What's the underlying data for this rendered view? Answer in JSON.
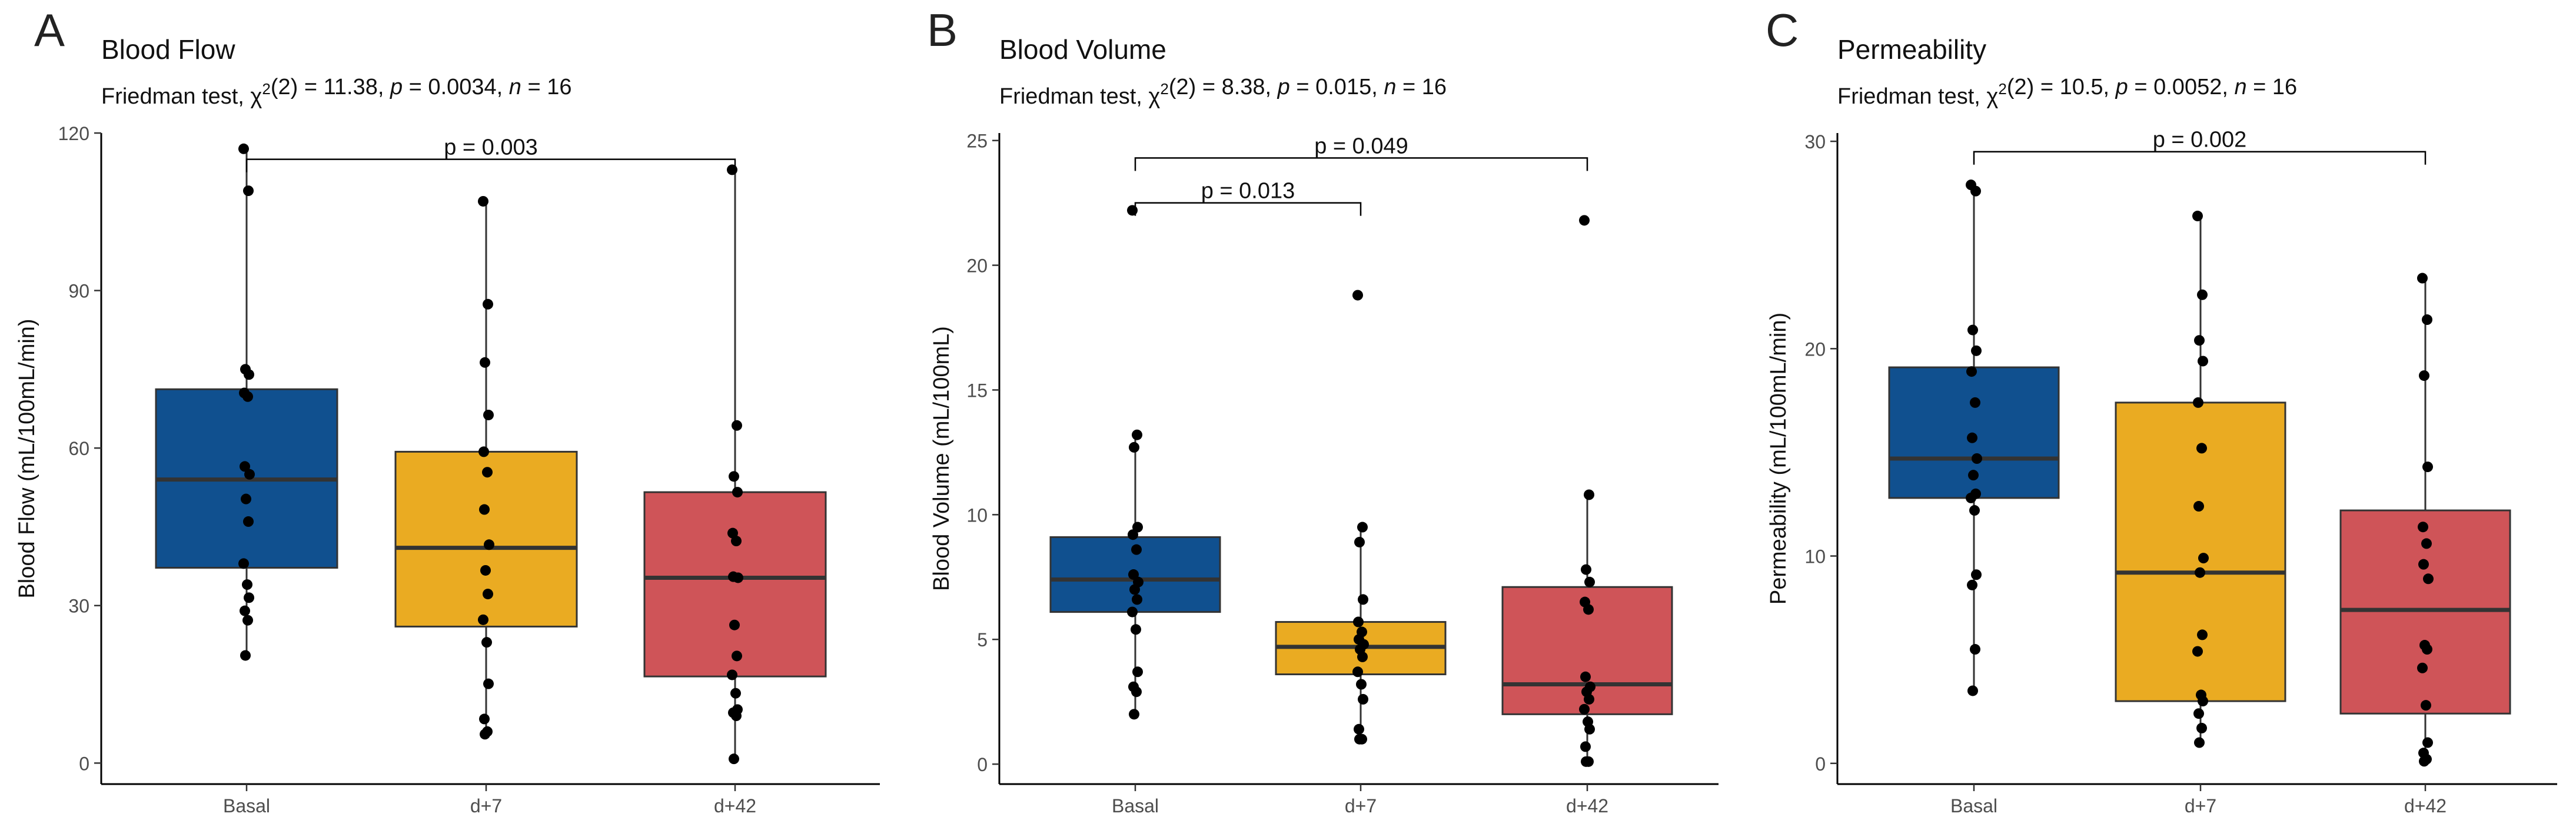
{
  "figure": {
    "type": "box",
    "groups": [
      "Basal",
      "d+7",
      "d+42"
    ]
  },
  "colors": {
    "Basal": "#10508f",
    "d+7": "#eaab22",
    "d+42": "#cf5458",
    "points": "#000000",
    "axis": "#000000",
    "box_edge": "#333333"
  },
  "chart_data": [
    {
      "type": "box",
      "panel_label": "A",
      "title": "Blood Flow",
      "stats": {
        "test": "Friedman test",
        "chi2_df": "2",
        "chi2": "11.38",
        "p": "0.0034",
        "n": "16"
      },
      "ylabel": "Blood Flow (mL/100mL/min)",
      "ylim": [
        -4,
        120
      ],
      "yticks": [
        0,
        30,
        60,
        90,
        120
      ],
      "categories": [
        "Basal",
        "d+7",
        "d+42"
      ],
      "boxes": [
        {
          "q1": 37.2,
          "median": 54.0,
          "q3": 71.2,
          "whisker_low": 20.5,
          "whisker_high": 117.0
        },
        {
          "q1": 26.0,
          "median": 41.0,
          "q3": 59.3,
          "whisker_low": 5.5,
          "whisker_high": 107.0
        },
        {
          "q1": 16.5,
          "median": 35.3,
          "q3": 51.6,
          "whisker_low": 0.8,
          "whisker_high": 113.0
        }
      ],
      "points": [
        [
          117.0,
          109.0,
          75.0,
          74.0,
          70.5,
          69.8,
          56.5,
          55.0,
          50.3,
          46.0,
          38.0,
          34.0,
          31.5,
          29.0,
          27.2,
          20.5
        ],
        [
          107.0,
          87.4,
          76.3,
          66.3,
          59.3,
          55.4,
          48.3,
          41.6,
          36.7,
          32.2,
          27.3,
          23.0,
          15.1,
          8.4,
          6.0,
          5.5
        ],
        [
          113.0,
          64.3,
          54.6,
          51.6,
          43.8,
          42.3,
          35.5,
          35.3,
          26.3,
          20.4,
          16.8,
          13.3,
          10.2,
          9.6,
          9.0,
          0.8
        ]
      ],
      "comparisons": [
        {
          "from": "Basal",
          "to": "d+42",
          "label": "p = 0.003",
          "y": 115.0
        }
      ]
    },
    {
      "type": "box",
      "panel_label": "B",
      "title": "Blood Volume",
      "stats": {
        "test": "Friedman test",
        "chi2_df": "2",
        "chi2": "8.38",
        "p": "0.015",
        "n": "16"
      },
      "ylabel": "Blood Volume (mL/100mL)",
      "ylim": [
        -0.8,
        25.3
      ],
      "yticks": [
        0,
        5,
        10,
        15,
        20,
        25
      ],
      "categories": [
        "Basal",
        "d+7",
        "d+42"
      ],
      "boxes": [
        {
          "q1": 6.1,
          "median": 7.4,
          "q3": 9.1,
          "whisker_low": 2.0,
          "whisker_high": 13.2
        },
        {
          "q1": 3.6,
          "median": 4.7,
          "q3": 5.7,
          "whisker_low": 1.0,
          "whisker_high": 9.5
        },
        {
          "q1": 2.0,
          "median": 3.2,
          "q3": 7.1,
          "whisker_low": 0.1,
          "whisker_high": 10.8
        }
      ],
      "points": [
        [
          22.2,
          13.2,
          12.7,
          9.5,
          9.2,
          8.6,
          7.6,
          7.3,
          7.0,
          6.6,
          6.1,
          5.4,
          3.7,
          3.1,
          2.9,
          2.0
        ],
        [
          18.8,
          9.5,
          8.9,
          6.6,
          5.7,
          5.3,
          5.0,
          4.8,
          4.6,
          4.3,
          3.7,
          3.2,
          2.6,
          1.4,
          1.0,
          1.0
        ],
        [
          21.8,
          10.8,
          7.8,
          7.3,
          6.5,
          6.2,
          3.5,
          3.1,
          2.9,
          2.6,
          2.2,
          1.7,
          1.4,
          0.7,
          0.1,
          0.1
        ]
      ],
      "comparisons": [
        {
          "from": "Basal",
          "to": "d+7",
          "label": "p = 0.013",
          "y": 22.5
        },
        {
          "from": "Basal",
          "to": "d+42",
          "label": "p = 0.049",
          "y": 24.3
        }
      ]
    },
    {
      "type": "box",
      "panel_label": "C",
      "title": "Permeability",
      "stats": {
        "test": "Friedman test",
        "chi2_df": "2",
        "chi2": "10.5",
        "p": "0.0052",
        "n": "16"
      },
      "ylabel": "Permeability (mL/100mL/min)",
      "ylim": [
        -1.0,
        30.4
      ],
      "yticks": [
        0,
        10,
        20,
        30
      ],
      "categories": [
        "Basal",
        "d+7",
        "d+42"
      ],
      "boxes": [
        {
          "q1": 12.8,
          "median": 14.7,
          "q3": 19.1,
          "whisker_low": 3.5,
          "whisker_high": 27.9
        },
        {
          "q1": 3.0,
          "median": 9.2,
          "q3": 17.4,
          "whisker_low": 1.0,
          "whisker_high": 26.4
        },
        {
          "q1": 2.4,
          "median": 7.4,
          "q3": 12.2,
          "whisker_low": 0.1,
          "whisker_high": 23.4
        }
      ],
      "points": [
        [
          27.9,
          27.6,
          20.9,
          19.9,
          18.9,
          17.4,
          15.7,
          14.7,
          13.9,
          13.0,
          12.8,
          12.2,
          9.1,
          8.6,
          5.5,
          3.5
        ],
        [
          26.4,
          22.6,
          20.4,
          19.4,
          17.4,
          15.2,
          12.4,
          9.9,
          9.2,
          6.2,
          5.4,
          3.3,
          3.0,
          2.4,
          1.7,
          1.0
        ],
        [
          23.4,
          21.4,
          18.7,
          14.3,
          11.4,
          10.6,
          9.6,
          8.9,
          5.7,
          5.5,
          4.6,
          2.8,
          1.0,
          0.5,
          0.2,
          0.1
        ]
      ],
      "comparisons": [
        {
          "from": "Basal",
          "to": "d+42",
          "label": "p = 0.002",
          "y": 29.5
        }
      ]
    }
  ]
}
